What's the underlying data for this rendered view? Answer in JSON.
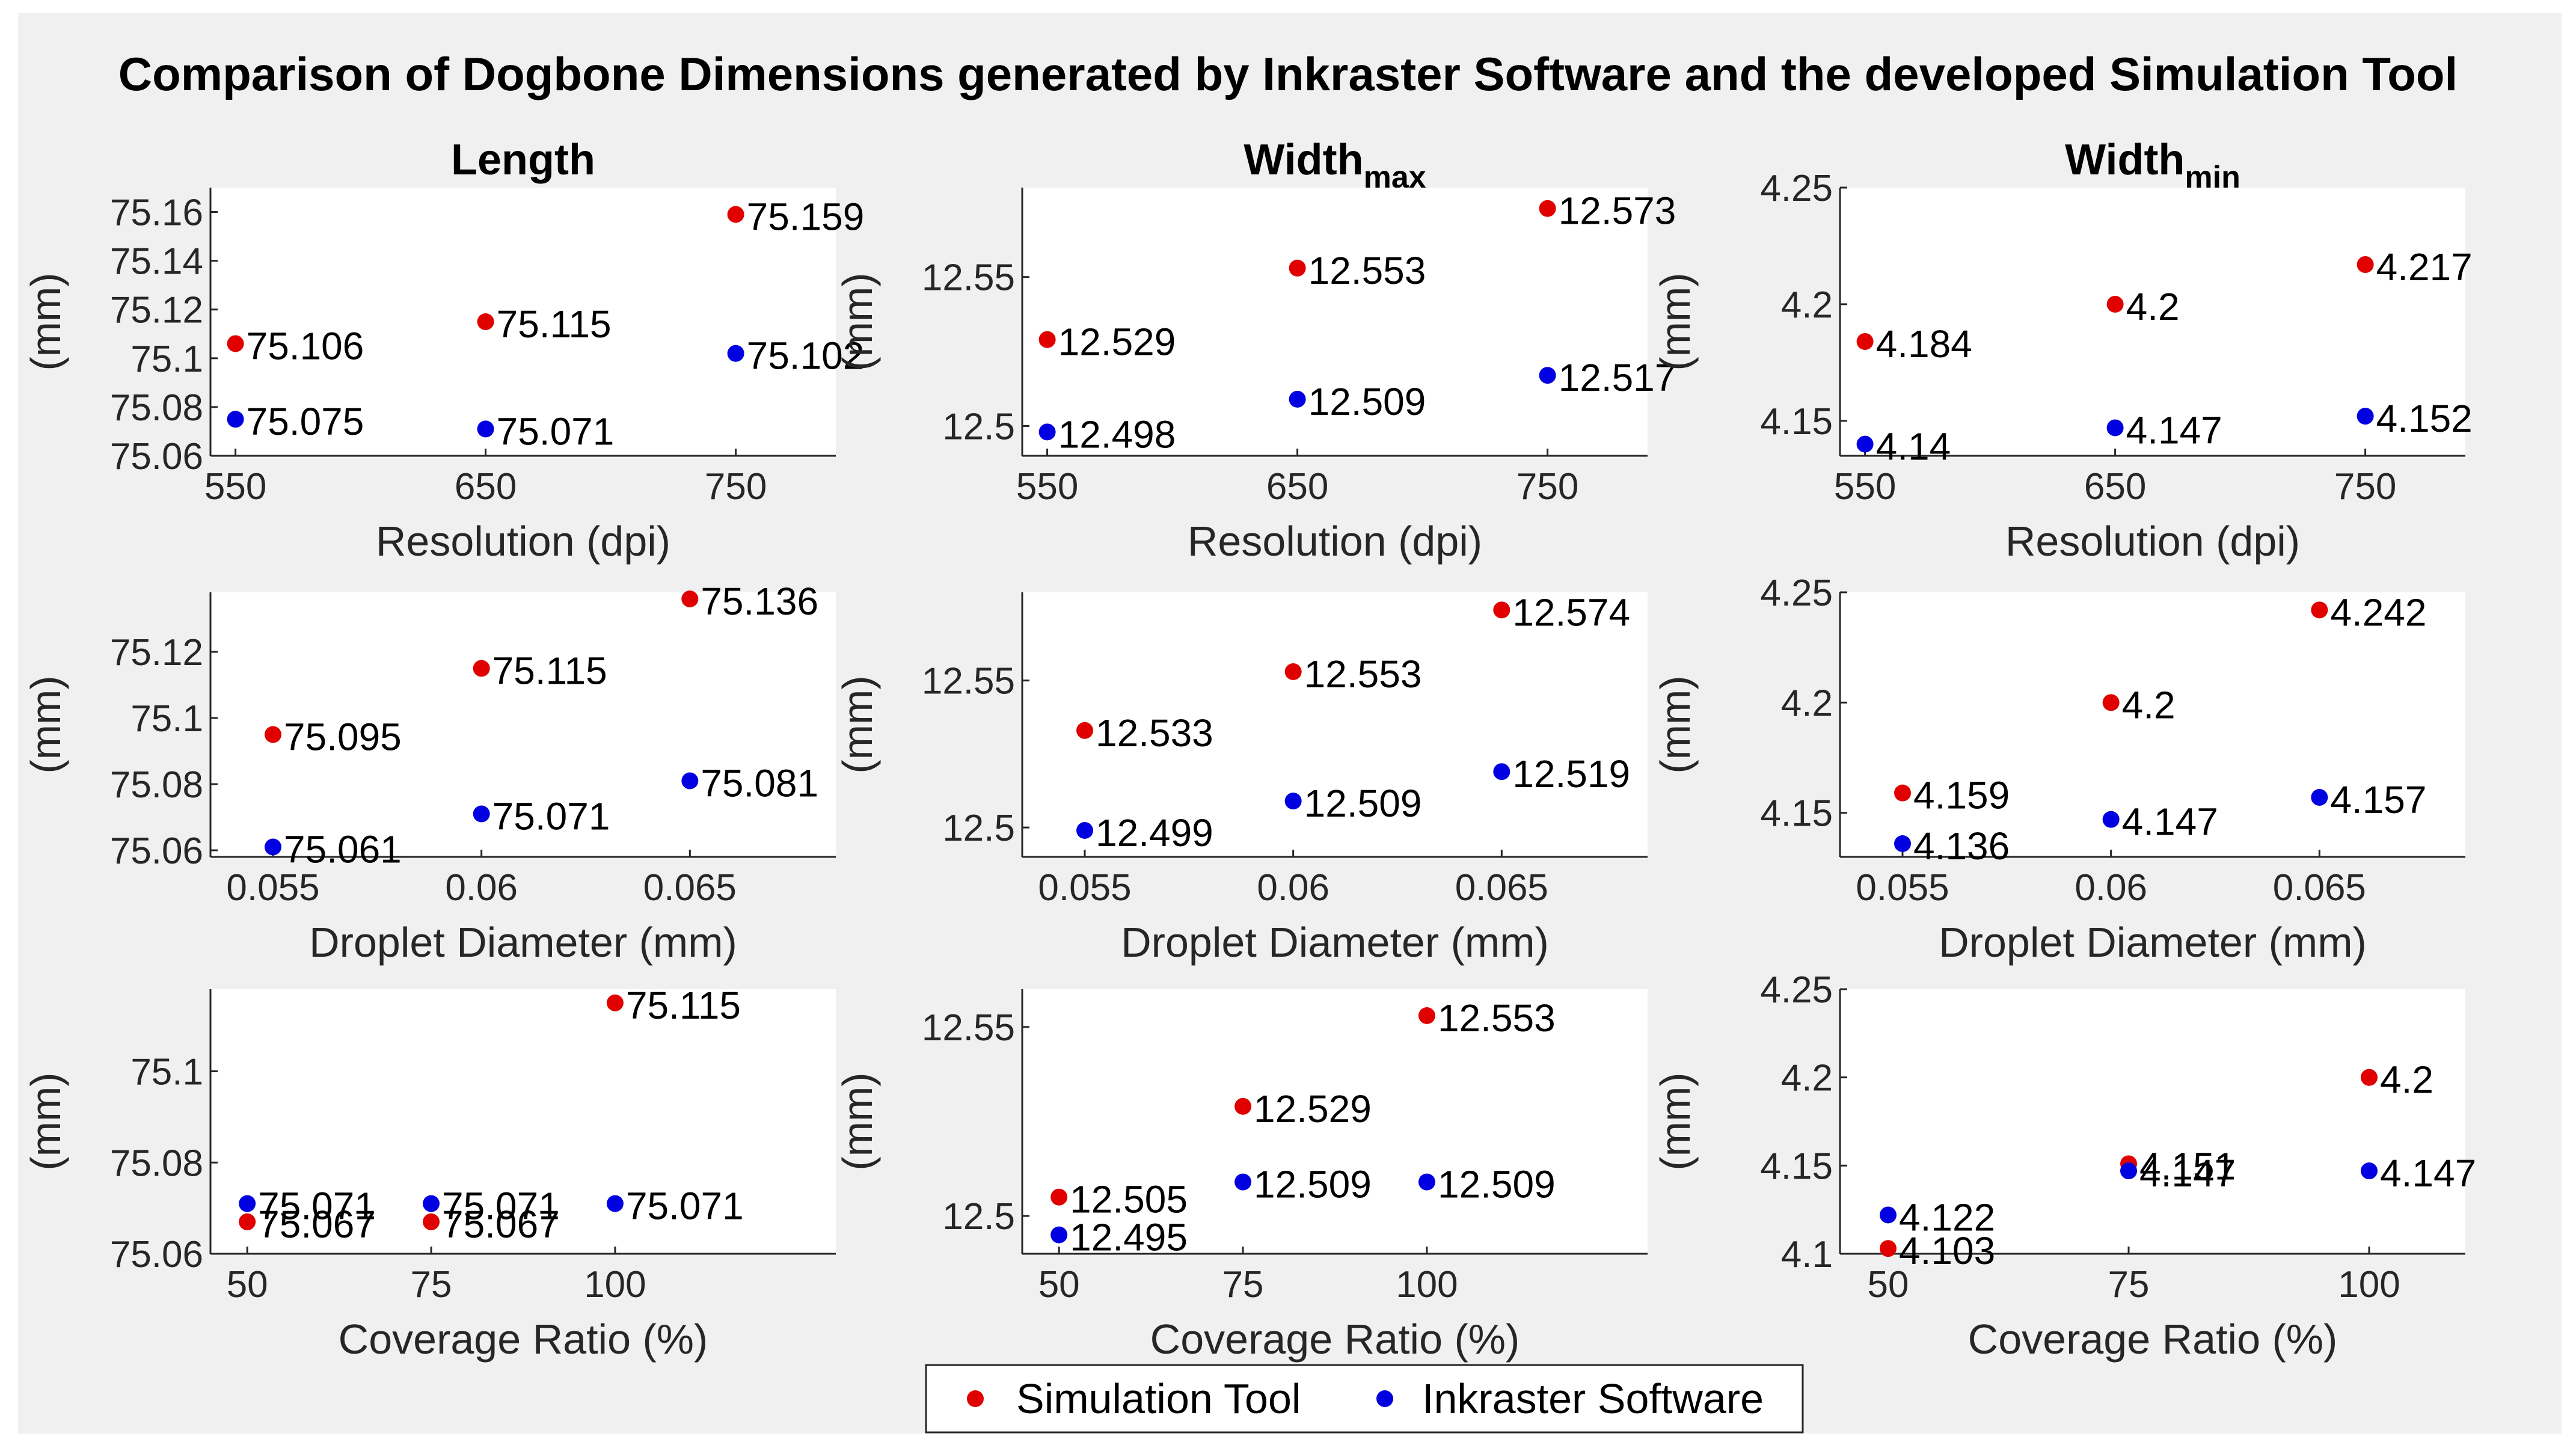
{
  "figure_title": "Comparison of Dogbone Dimensions generated by Inkraster Software and the developed Simulation Tool",
  "column_titles": [
    {
      "base": "Length",
      "sub": ""
    },
    {
      "base": "Width",
      "sub": "max"
    },
    {
      "base": "Width",
      "sub": "min"
    }
  ],
  "legend": {
    "position": "bottom-center",
    "items": [
      {
        "label": "Simulation Tool",
        "color": "#e00000"
      },
      {
        "label": "Inkraster Software",
        "color": "#0000e0"
      }
    ]
  },
  "colors": {
    "simulation": "#e00000",
    "inkraster": "#0000e0",
    "axis": "#262626",
    "tick_text": "#262626"
  },
  "chart_data": [
    {
      "type": "scatter",
      "row": 0,
      "col": 0,
      "title": "Length",
      "xlabel": "Resolution (dpi)",
      "ylabel": "(mm)",
      "xlim": [
        540,
        790
      ],
      "ylim": [
        75.06,
        75.17
      ],
      "xticks": [
        550,
        650,
        750
      ],
      "xtick_labels": [
        "550",
        "650",
        "750"
      ],
      "yticks": [
        75.06,
        75.08,
        75.1,
        75.12,
        75.14,
        75.16
      ],
      "ytick_labels": [
        "75.06",
        "75.08",
        "75.1",
        "75.12",
        "75.14",
        "75.16"
      ],
      "series": [
        {
          "name": "Simulation Tool",
          "x": [
            550,
            650,
            750
          ],
          "y": [
            75.106,
            75.115,
            75.159
          ],
          "labels": [
            "75.106",
            "75.115",
            "75.159"
          ]
        },
        {
          "name": "Inkraster Software",
          "x": [
            550,
            650,
            750
          ],
          "y": [
            75.075,
            75.071,
            75.102
          ],
          "labels": [
            "75.075",
            "75.071",
            "75.102"
          ]
        }
      ]
    },
    {
      "type": "scatter",
      "row": 0,
      "col": 1,
      "title": "Width max",
      "xlabel": "Resolution (dpi)",
      "ylabel": "(mm)",
      "xlim": [
        540,
        790
      ],
      "ylim": [
        12.49,
        12.58
      ],
      "xticks": [
        550,
        650,
        750
      ],
      "xtick_labels": [
        "550",
        "650",
        "750"
      ],
      "yticks": [
        12.5,
        12.55
      ],
      "ytick_labels": [
        "12.5",
        "12.55"
      ],
      "series": [
        {
          "name": "Simulation Tool",
          "x": [
            550,
            650,
            750
          ],
          "y": [
            12.529,
            12.553,
            12.573
          ],
          "labels": [
            "12.529",
            "12.553",
            "12.573"
          ]
        },
        {
          "name": "Inkraster Software",
          "x": [
            550,
            650,
            750
          ],
          "y": [
            12.498,
            12.509,
            12.517
          ],
          "labels": [
            "12.498",
            "12.509",
            "12.517"
          ]
        }
      ]
    },
    {
      "type": "scatter",
      "row": 0,
      "col": 2,
      "title": "Width min",
      "xlabel": "Resolution (dpi)",
      "ylabel": "(mm)",
      "xlim": [
        540,
        790
      ],
      "ylim": [
        4.135,
        4.25
      ],
      "xticks": [
        550,
        650,
        750
      ],
      "xtick_labels": [
        "550",
        "650",
        "750"
      ],
      "yticks": [
        4.15,
        4.2,
        4.25
      ],
      "ytick_labels": [
        "4.15",
        "4.2",
        "4.25"
      ],
      "series": [
        {
          "name": "Simulation Tool",
          "x": [
            550,
            650,
            750
          ],
          "y": [
            4.184,
            4.2,
            4.217
          ],
          "labels": [
            "4.184",
            "4.2",
            "4.217"
          ]
        },
        {
          "name": "Inkraster Software",
          "x": [
            550,
            650,
            750
          ],
          "y": [
            4.14,
            4.147,
            4.152
          ],
          "labels": [
            "4.14",
            "4.147",
            "4.152"
          ]
        }
      ]
    },
    {
      "type": "scatter",
      "row": 1,
      "col": 0,
      "title": "",
      "xlabel": "Droplet Diameter (mm)",
      "ylabel": "(mm)",
      "xlim": [
        0.0535,
        0.0685
      ],
      "ylim": [
        75.058,
        75.138
      ],
      "xticks": [
        0.055,
        0.06,
        0.065
      ],
      "xtick_labels": [
        "0.055",
        "0.06",
        "0.065"
      ],
      "yticks": [
        75.06,
        75.08,
        75.1,
        75.12
      ],
      "ytick_labels": [
        "75.06",
        "75.08",
        "75.1",
        "75.12"
      ],
      "series": [
        {
          "name": "Simulation Tool",
          "x": [
            0.055,
            0.06,
            0.065
          ],
          "y": [
            75.095,
            75.115,
            75.136
          ],
          "labels": [
            "75.095",
            "75.115",
            "75.136"
          ]
        },
        {
          "name": "Inkraster Software",
          "x": [
            0.055,
            0.06,
            0.065
          ],
          "y": [
            75.061,
            75.071,
            75.081
          ],
          "labels": [
            "75.061",
            "75.071",
            "75.081"
          ]
        }
      ]
    },
    {
      "type": "scatter",
      "row": 1,
      "col": 1,
      "title": "",
      "xlabel": "Droplet Diameter (mm)",
      "ylabel": "(mm)",
      "xlim": [
        0.0535,
        0.0685
      ],
      "ylim": [
        12.49,
        12.58
      ],
      "xticks": [
        0.055,
        0.06,
        0.065
      ],
      "xtick_labels": [
        "0.055",
        "0.06",
        "0.065"
      ],
      "yticks": [
        12.5,
        12.55
      ],
      "ytick_labels": [
        "12.5",
        "12.55"
      ],
      "series": [
        {
          "name": "Simulation Tool",
          "x": [
            0.055,
            0.06,
            0.065
          ],
          "y": [
            12.533,
            12.553,
            12.574
          ],
          "labels": [
            "12.533",
            "12.553",
            "12.574"
          ]
        },
        {
          "name": "Inkraster Software",
          "x": [
            0.055,
            0.06,
            0.065
          ],
          "y": [
            12.499,
            12.509,
            12.519
          ],
          "labels": [
            "12.499",
            "12.509",
            "12.519"
          ]
        }
      ]
    },
    {
      "type": "scatter",
      "row": 1,
      "col": 2,
      "title": "",
      "xlabel": "Droplet Diameter (mm)",
      "ylabel": "(mm)",
      "xlim": [
        0.0535,
        0.0685
      ],
      "ylim": [
        4.13,
        4.25
      ],
      "xticks": [
        0.055,
        0.06,
        0.065
      ],
      "xtick_labels": [
        "0.055",
        "0.06",
        "0.065"
      ],
      "yticks": [
        4.15,
        4.2,
        4.25
      ],
      "ytick_labels": [
        "4.15",
        "4.2",
        "4.25"
      ],
      "series": [
        {
          "name": "Simulation Tool",
          "x": [
            0.055,
            0.06,
            0.065
          ],
          "y": [
            4.159,
            4.2,
            4.242
          ],
          "labels": [
            "4.159",
            "4.2",
            "4.242"
          ]
        },
        {
          "name": "Inkraster Software",
          "x": [
            0.055,
            0.06,
            0.065
          ],
          "y": [
            4.136,
            4.147,
            4.157
          ],
          "labels": [
            "4.136",
            "4.147",
            "4.157"
          ]
        }
      ]
    },
    {
      "type": "scatter",
      "row": 2,
      "col": 0,
      "title": "",
      "xlabel": "Coverage Ratio (%)",
      "ylabel": "(mm)",
      "xlim": [
        45,
        130
      ],
      "ylim": [
        75.06,
        75.118
      ],
      "xticks": [
        50,
        75,
        100
      ],
      "xtick_labels": [
        "50",
        "75",
        "100"
      ],
      "yticks": [
        75.06,
        75.08,
        75.1
      ],
      "ytick_labels": [
        "75.06",
        "75.08",
        "75.1"
      ],
      "series": [
        {
          "name": "Simulation Tool",
          "x": [
            50,
            75,
            100
          ],
          "y": [
            75.067,
            75.067,
            75.115
          ],
          "labels": [
            "75.067",
            "75.067",
            "75.115"
          ]
        },
        {
          "name": "Inkraster Software",
          "x": [
            50,
            75,
            100
          ],
          "y": [
            75.071,
            75.071,
            75.071
          ],
          "labels": [
            "75.071",
            "75.071",
            "75.071"
          ]
        }
      ]
    },
    {
      "type": "scatter",
      "row": 2,
      "col": 1,
      "title": "",
      "xlabel": "Coverage Ratio (%)",
      "ylabel": "(mm)",
      "xlim": [
        45,
        130
      ],
      "ylim": [
        12.49,
        12.56
      ],
      "xticks": [
        50,
        75,
        100
      ],
      "xtick_labels": [
        "50",
        "75",
        "100"
      ],
      "yticks": [
        12.5,
        12.55
      ],
      "ytick_labels": [
        "12.5",
        "12.55"
      ],
      "series": [
        {
          "name": "Simulation Tool",
          "x": [
            50,
            75,
            100
          ],
          "y": [
            12.505,
            12.529,
            12.553
          ],
          "labels": [
            "12.505",
            "12.529",
            "12.553"
          ]
        },
        {
          "name": "Inkraster Software",
          "x": [
            50,
            75,
            100
          ],
          "y": [
            12.495,
            12.509,
            12.509
          ],
          "labels": [
            "12.495",
            "12.509",
            "12.509"
          ]
        }
      ]
    },
    {
      "type": "scatter",
      "row": 2,
      "col": 2,
      "title": "",
      "xlabel": "Coverage Ratio (%)",
      "ylabel": "(mm)",
      "xlim": [
        45,
        110
      ],
      "ylim": [
        4.1,
        4.25
      ],
      "xticks": [
        50,
        75,
        100
      ],
      "xtick_labels": [
        "50",
        "75",
        "100"
      ],
      "yticks": [
        4.1,
        4.15,
        4.2,
        4.25
      ],
      "ytick_labels": [
        "4.1",
        "4.15",
        "4.2",
        "4.25"
      ],
      "series": [
        {
          "name": "Simulation Tool",
          "x": [
            50,
            75,
            100
          ],
          "y": [
            4.103,
            4.151,
            4.2
          ],
          "labels": [
            "4.103",
            "4.151",
            "4.2"
          ]
        },
        {
          "name": "Inkraster Software",
          "x": [
            50,
            75,
            100
          ],
          "y": [
            4.122,
            4.147,
            4.147
          ],
          "labels": [
            "4.122",
            "4.147",
            "4.147"
          ]
        }
      ]
    }
  ]
}
